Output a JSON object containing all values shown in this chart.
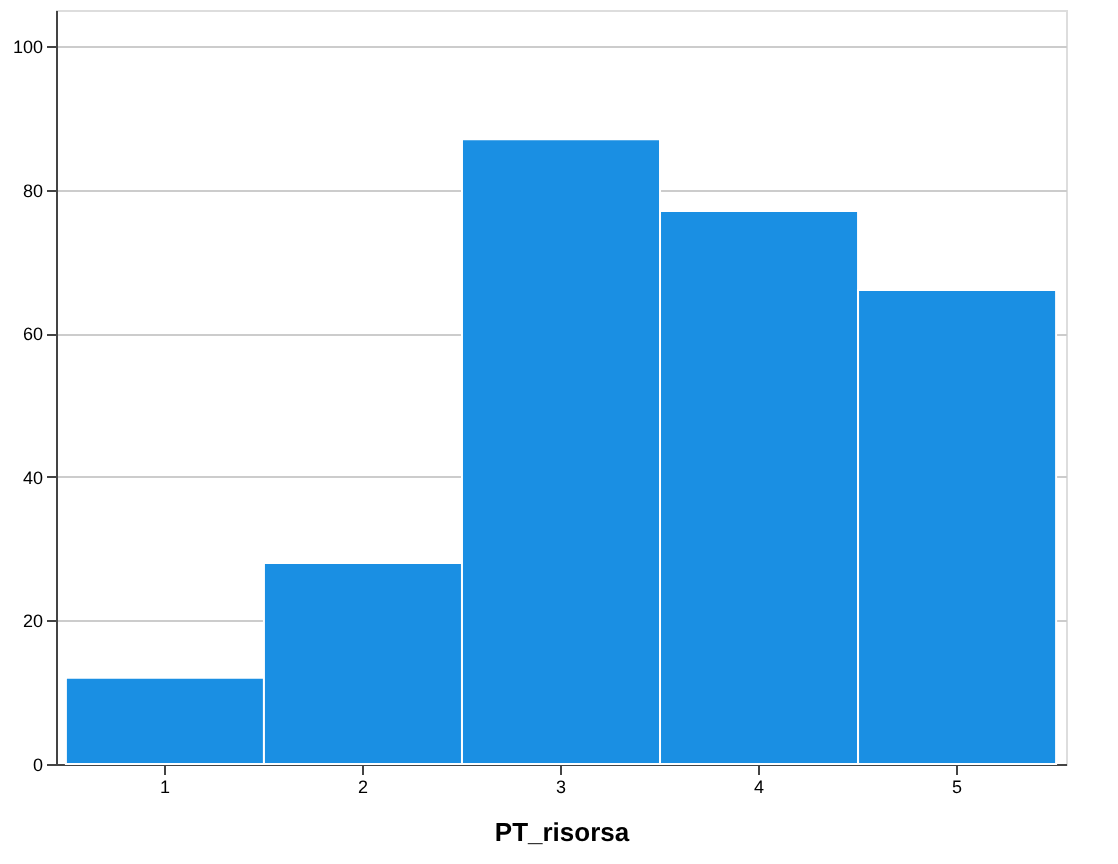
{
  "chart_data": {
    "type": "bar",
    "xlabel": "PT_risorsa",
    "categories": [
      "1",
      "2",
      "3",
      "4",
      "5"
    ],
    "values": [
      12,
      28,
      87,
      77,
      66
    ],
    "color": "#1a8fe3",
    "ylim": [
      0,
      105
    ],
    "yticks": [
      0,
      20,
      40,
      60,
      80,
      100
    ],
    "grid": "y"
  }
}
